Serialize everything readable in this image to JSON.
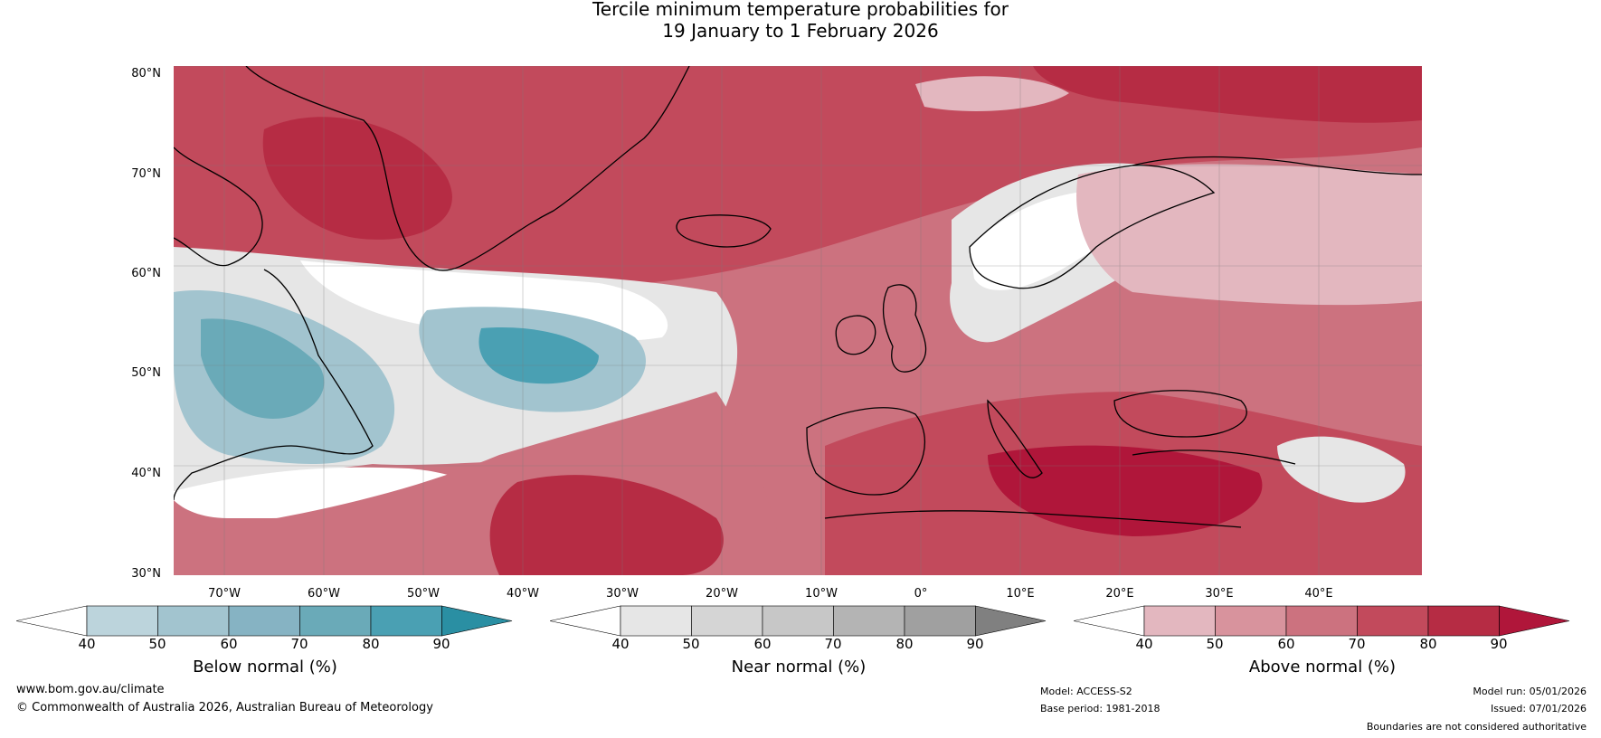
{
  "title": {
    "line1": "Tercile minimum temperature probabilities for",
    "line2": "19 January to 1 February 2026"
  },
  "map": {
    "lat_labels": [
      "80°N",
      "70°N",
      "60°N",
      "50°N",
      "40°N",
      "30°N"
    ],
    "lon_labels": [
      "70°W",
      "60°W",
      "50°W",
      "40°W",
      "30°W",
      "20°W",
      "10°W",
      "0°",
      "10°E",
      "20°E",
      "30°E",
      "40°E"
    ]
  },
  "colorbars": [
    {
      "name": "below",
      "title": "Below normal (%)",
      "ticks": [
        "40",
        "50",
        "60",
        "70",
        "80",
        "90"
      ],
      "colors": [
        "#ffffff",
        "#bcd4dc",
        "#a2c4cf",
        "#86b3c3",
        "#6aaab8",
        "#4aa0b3",
        "#2a8fa3"
      ]
    },
    {
      "name": "near",
      "title": "Near normal (%)",
      "ticks": [
        "40",
        "50",
        "60",
        "70",
        "80",
        "90"
      ],
      "colors": [
        "#ffffff",
        "#e6e6e6",
        "#d5d5d5",
        "#c7c7c7",
        "#b4b4b4",
        "#a0a0a0",
        "#808080"
      ]
    },
    {
      "name": "above",
      "title": "Above normal (%)",
      "ticks": [
        "40",
        "50",
        "60",
        "70",
        "80",
        "90"
      ],
      "colors": [
        "#ffffff",
        "#e3b7bf",
        "#d8939d",
        "#cc727f",
        "#c24a5c",
        "#b62c44",
        "#b0163a"
      ]
    }
  ],
  "footer": {
    "website": "www.bom.gov.au/climate",
    "copyright": "© Commonwealth of Australia 2026, Australian Bureau of Meteorology",
    "model": "Model: ACCESS-S2",
    "base_period": "Base period: 1981-2018",
    "model_run": "Model run: 05/01/2026",
    "issued": "Issued: 07/01/2026",
    "disclaimer": "Boundaries are not considered authoritative"
  }
}
